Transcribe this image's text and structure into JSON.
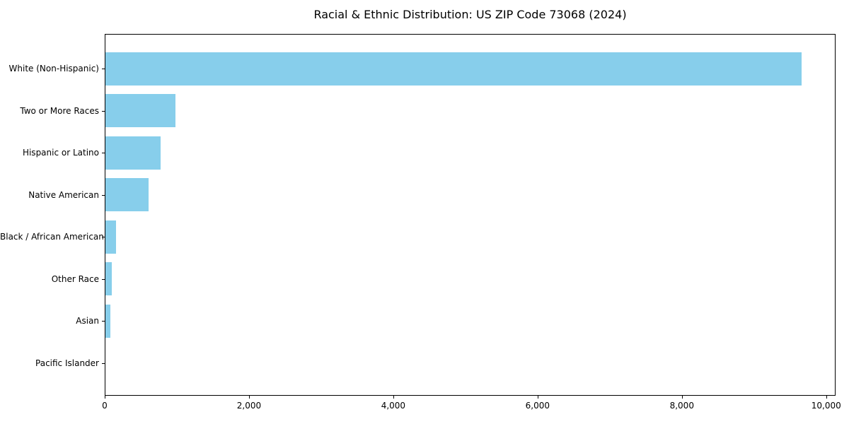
{
  "chart_data": {
    "type": "bar",
    "orientation": "horizontal",
    "title": "Racial & Ethnic Distribution: US ZIP Code 73068 (2024)",
    "categories": [
      "White (Non-Hispanic)",
      "Two or More Races",
      "Hispanic or Latino",
      "Native American",
      "Black / African American",
      "Other Race",
      "Asian",
      "Pacific Islander"
    ],
    "values": [
      9650,
      975,
      765,
      595,
      145,
      90,
      70,
      0
    ],
    "xlabel": "",
    "ylabel": "",
    "xlim": [
      0,
      10130
    ],
    "xticks": {
      "values": [
        0,
        2000,
        4000,
        6000,
        8000,
        10000
      ],
      "labels": [
        "0",
        "2,000",
        "4,000",
        "6,000",
        "8,000",
        "10,000"
      ]
    },
    "grid": false,
    "legend": null,
    "colors": {
      "bar": "#87CEEB",
      "spine": "#000000",
      "text": "#000000",
      "background": "#ffffff"
    }
  }
}
